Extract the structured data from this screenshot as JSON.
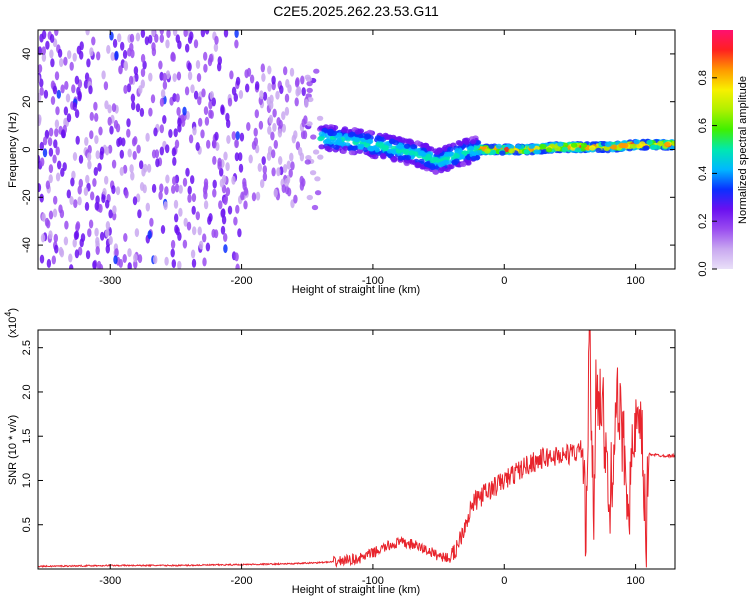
{
  "title": "C2E5.2025.262.23.53.G11",
  "colors": {
    "snr_line": "#e8242c",
    "axis": "#000000",
    "colorbar_stops": [
      "#e9e0f8",
      "#c9a8f0",
      "#9a4cf0",
      "#6a10f0",
      "#0a30ff",
      "#00b8ff",
      "#00e8b0",
      "#40f000",
      "#b0f000",
      "#f8f000",
      "#ff9800",
      "#ff2020",
      "#ff1070"
    ]
  },
  "chart_data": [
    {
      "type": "heatmap",
      "xlabel": "Height of straight line (km)",
      "ylabel": "Frequency (Hz)",
      "xlim": [
        -355,
        130
      ],
      "ylim": [
        -50,
        50
      ],
      "x_ticks": [
        -300,
        -200,
        -100,
        0,
        100
      ],
      "x_tick_labels": [
        "-300",
        "-200",
        "-100",
        "0",
        "100"
      ],
      "y_ticks": [
        -40,
        -20,
        0,
        20,
        40
      ],
      "y_tick_labels": [
        "-40",
        "-20",
        "0",
        "20",
        "40"
      ],
      "colorbar": {
        "label": "Normalized spectral amplitude",
        "range": [
          0,
          1
        ],
        "ticks": [
          0.0,
          0.2,
          0.4,
          0.6,
          0.8
        ],
        "tick_labels": [
          "0.0",
          "0.2",
          "0.4",
          "0.6",
          "0.8"
        ]
      },
      "ridge": {
        "x": [
          -200,
          -180,
          -160,
          -140,
          -120,
          -100,
          -80,
          -60,
          -50,
          -40,
          -30,
          -20,
          0,
          20,
          40,
          60,
          80,
          100,
          130
        ],
        "y": [
          1,
          2,
          4,
          5,
          4,
          2,
          0,
          -3,
          -5,
          -3,
          -1,
          0,
          0,
          0,
          1,
          1,
          1,
          2,
          2
        ]
      }
    },
    {
      "type": "line",
      "xlabel": "Height of straight line (km)",
      "ylabel": "SNR (10 * v/v)",
      "y_multiplier": "(x10",
      "y_multiplier_exp": "4",
      "y_multiplier_close": ")",
      "xlim": [
        -355,
        130
      ],
      "ylim": [
        0,
        2.7
      ],
      "x_ticks": [
        -300,
        -200,
        -100,
        0,
        100
      ],
      "x_tick_labels": [
        "-300",
        "-200",
        "-100",
        "0",
        "100"
      ],
      "y_ticks": [
        0.5,
        1.0,
        1.5,
        2.0,
        2.5
      ],
      "y_tick_labels": [
        "0.5",
        "1.0",
        "1.5",
        "2.0",
        "2.5"
      ],
      "series": [
        {
          "x": [
            -355,
            -300,
            -250,
            -200,
            -160,
            -130,
            -110,
            -100,
            -90,
            -80,
            -70,
            -60,
            -50,
            -40,
            -35,
            -30,
            -25,
            -20,
            -10,
            0,
            10,
            20,
            30,
            40,
            50,
            55,
            60,
            62,
            65,
            68,
            70,
            75,
            80,
            85,
            90,
            95,
            100,
            105,
            108,
            110,
            115,
            120,
            130
          ],
          "y": [
            0.03,
            0.04,
            0.04,
            0.05,
            0.06,
            0.08,
            0.12,
            0.18,
            0.25,
            0.3,
            0.28,
            0.22,
            0.15,
            0.12,
            0.3,
            0.5,
            0.7,
            0.8,
            0.9,
            1.0,
            1.1,
            1.2,
            1.25,
            1.28,
            1.3,
            1.32,
            1.35,
            0.3,
            2.6,
            0.5,
            2.2,
            1.8,
            0.6,
            1.9,
            1.5,
            0.8,
            1.6,
            1.4,
            0.3,
            1.3,
            1.29,
            1.28,
            1.28
          ]
        }
      ]
    }
  ]
}
